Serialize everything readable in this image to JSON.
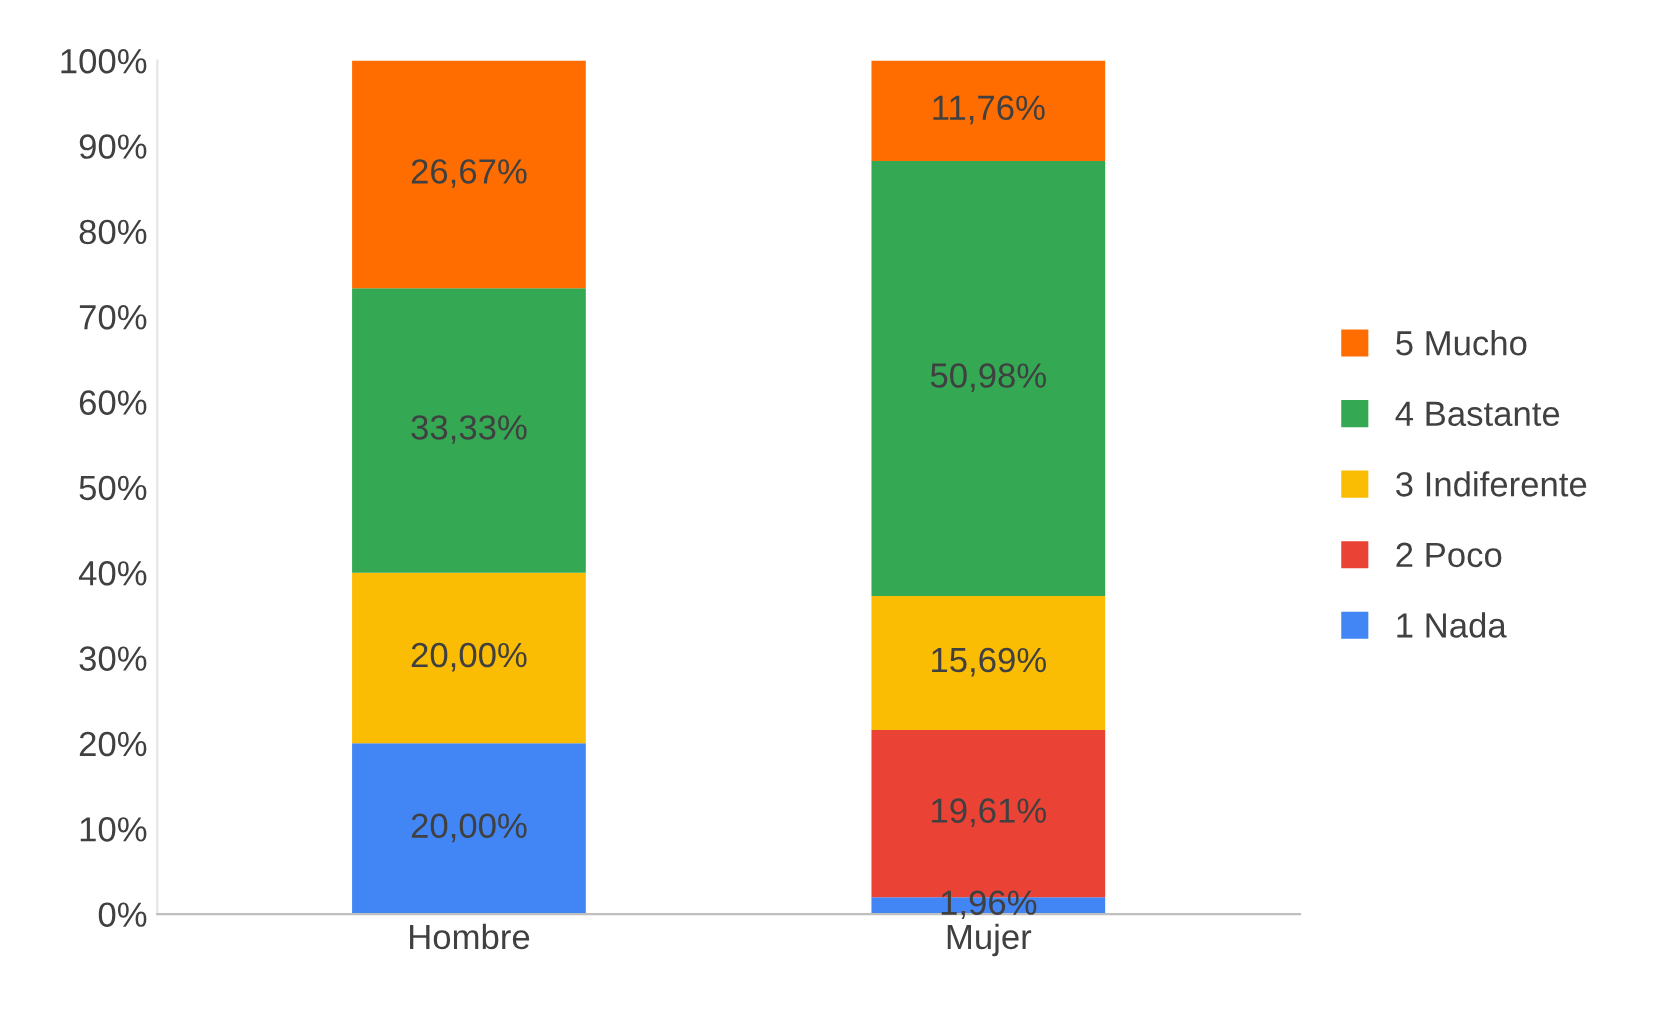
{
  "chart_data": {
    "type": "bar",
    "stacked": true,
    "categories": [
      "Hombre",
      "Mujer"
    ],
    "series": [
      {
        "name": "1 Nada",
        "color": "#4285f4",
        "values": [
          20.0,
          1.96
        ],
        "value_labels": [
          "20,00%",
          "1,96%"
        ]
      },
      {
        "name": "2 Poco",
        "color": "#ea4335",
        "values": [
          null,
          19.61
        ],
        "value_labels": [
          null,
          "19,61%"
        ]
      },
      {
        "name": "3 Indiferente",
        "color": "#fbbc04",
        "values": [
          20.0,
          15.69
        ],
        "value_labels": [
          "20,00%",
          "15,69%"
        ]
      },
      {
        "name": "4 Bastante",
        "color": "#34a853",
        "values": [
          33.33,
          50.98
        ],
        "value_labels": [
          "33,33%",
          "50,98%"
        ]
      },
      {
        "name": "5 Mucho",
        "color": "#ff6d01",
        "values": [
          26.67,
          11.76
        ],
        "value_labels": [
          "26,67%",
          "11,76%"
        ]
      }
    ],
    "ylim": [
      0,
      100
    ],
    "yticks": [
      {
        "value": 0,
        "label": "0%"
      },
      {
        "value": 10,
        "label": "10%"
      },
      {
        "value": 20,
        "label": "20%"
      },
      {
        "value": 30,
        "label": "30%"
      },
      {
        "value": 40,
        "label": "40%"
      },
      {
        "value": 50,
        "label": "50%"
      },
      {
        "value": 60,
        "label": "60%"
      },
      {
        "value": 70,
        "label": "70%"
      },
      {
        "value": 80,
        "label": "80%"
      },
      {
        "value": 90,
        "label": "90%"
      },
      {
        "value": 100,
        "label": "100%"
      }
    ],
    "grid": false,
    "legend": "right"
  }
}
